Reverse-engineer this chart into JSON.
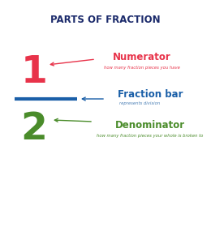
{
  "title": "PARTS OF FRACTION",
  "title_color": "#1b2a6b",
  "title_fontsize": 8.5,
  "bg_color": "#ffffff",
  "numerator_digit": "1",
  "numerator_digit_color": "#e8334a",
  "numerator_label": "Numerator",
  "numerator_label_color": "#e8334a",
  "numerator_desc": "how many fraction pieces you have",
  "numerator_desc_color": "#e8334a",
  "fraction_bar_color": "#1a5fa8",
  "fraction_label": "Fraction bar",
  "fraction_label_color": "#1a5fa8",
  "fraction_desc": "represents division",
  "fraction_desc_color": "#4a7fb5",
  "denominator_digit": "2",
  "denominator_digit_color": "#4a8c2a",
  "denominator_label": "Denominator",
  "denominator_label_color": "#4a8c2a",
  "denominator_desc": "how many fraction pieces your whole is broken to",
  "denominator_desc_color": "#4a8c2a",
  "arrow_color_red": "#e8334a",
  "arrow_color_blue": "#1a5fa8",
  "arrow_color_green": "#4a8c2a"
}
